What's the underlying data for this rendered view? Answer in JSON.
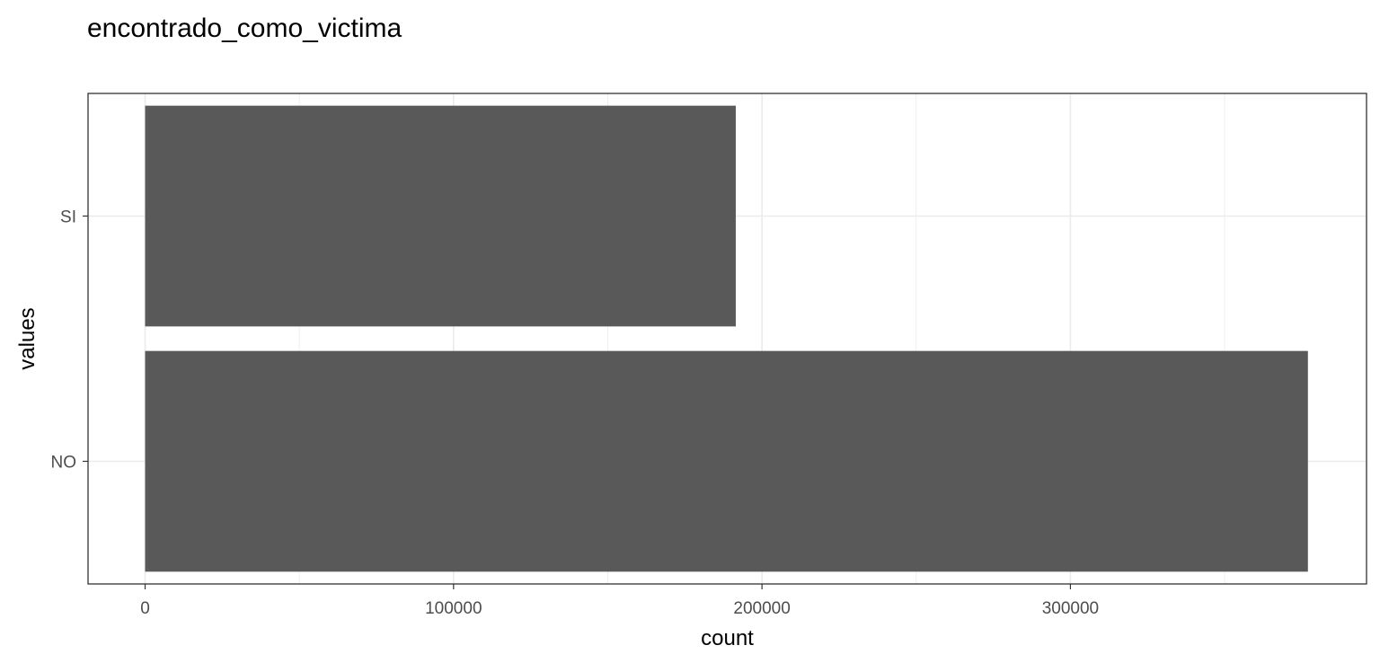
{
  "chart_data": {
    "type": "bar",
    "orientation": "horizontal",
    "title": "encontrado_como_victima",
    "xlabel": "count",
    "ylabel": "values",
    "categories": [
      "NO",
      "SI"
    ],
    "values": [
      377000,
      191500
    ],
    "xlim": [
      -18500,
      396000
    ],
    "xticks_major": [
      0,
      100000,
      200000,
      300000
    ],
    "xticks_minor": [
      50000,
      150000,
      250000,
      350000
    ],
    "grid": true,
    "legend": "none",
    "bar_color": "#595959",
    "grid_color": "#ebebeb",
    "panel_border_color": "#333333"
  }
}
